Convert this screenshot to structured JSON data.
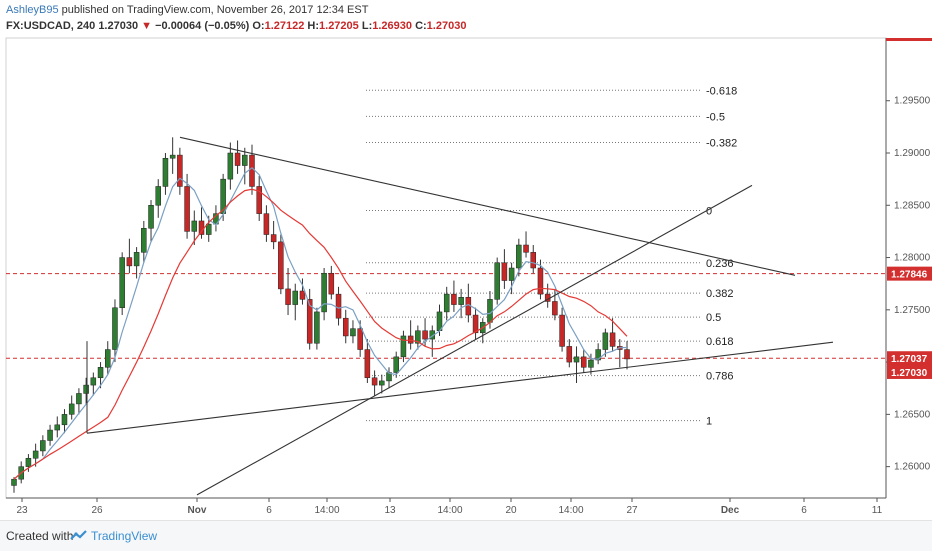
{
  "header": {
    "author": "AshleyB95",
    "published": "published on TradingView.com, November 26, 2017 12:34 EST"
  },
  "ohlc": {
    "symbol": "FX:USDCAD, 240",
    "last": "1.27030",
    "change_arrow": "▼",
    "change": "−0.00064 (−0.05%)",
    "o_label": "O:",
    "o": "1.27122",
    "h_label": "H:",
    "h": "1.27205",
    "l_label": "L:",
    "l": "1.26930",
    "c_label": "C:",
    "c": "1.27030"
  },
  "footer": {
    "created": "Created with",
    "brand": "TradingView"
  },
  "chart_data": {
    "type": "line",
    "series_type": "candlestick",
    "x_ticks": [
      "23",
      "26",
      "Nov",
      "6",
      "14:00",
      "13",
      "14:00",
      "20",
      "14:00",
      "27",
      "Dec",
      "6",
      "11"
    ],
    "y_ticks": [
      "1.29500",
      "1.29000",
      "1.28500",
      "1.28000",
      "1.27500",
      "1.27000",
      "1.26500",
      "1.26000"
    ],
    "ylim": [
      1.257,
      1.301
    ],
    "price_labels": [
      {
        "value": 1.27846,
        "text": "1.27846",
        "color": "#d32f2f"
      },
      {
        "value": 1.27037,
        "text": "1.27037",
        "color": "#d32f2f"
      },
      {
        "value": 1.2703,
        "text": "1.27030",
        "color": "#d32f2f"
      }
    ],
    "horizontal_dashed_lines": [
      1.27846,
      1.27037
    ],
    "fibonacci": [
      {
        "level": "-0.618",
        "price": 1.296
      },
      {
        "level": "-0.5",
        "price": 1.2935
      },
      {
        "level": "-0.382",
        "price": 1.291
      },
      {
        "level": "0",
        "price": 1.2845
      },
      {
        "level": "0.236",
        "price": 1.2795
      },
      {
        "level": "0.382",
        "price": 1.2766
      },
      {
        "level": "0.5",
        "price": 1.2743
      },
      {
        "level": "0.618",
        "price": 1.272
      },
      {
        "level": "0.786",
        "price": 1.2687
      },
      {
        "level": "1",
        "price": 1.2644
      }
    ],
    "trendlines": [
      {
        "name": "upper",
        "from": {
          "x": "Oct 31",
          "y": 1.2915
        },
        "to": {
          "x": "Dec 3",
          "y": 1.2783
        }
      },
      {
        "name": "lower",
        "from": {
          "x": "Oct 25",
          "y": 1.2632
        },
        "to": {
          "x": "Dec 7",
          "y": 1.2719
        }
      },
      {
        "name": "rising",
        "from": {
          "x": "Nov 1",
          "y": 1.2573
        },
        "to": {
          "x": "Dec 5",
          "y": 1.2869
        }
      }
    ],
    "candles": [
      [
        1.2582,
        1.259,
        1.2575,
        1.2588
      ],
      [
        1.2588,
        1.2605,
        1.2584,
        1.26
      ],
      [
        1.26,
        1.2612,
        1.2595,
        1.2608
      ],
      [
        1.2608,
        1.2622,
        1.26,
        1.2615
      ],
      [
        1.2615,
        1.263,
        1.261,
        1.2625
      ],
      [
        1.2625,
        1.264,
        1.262,
        1.2635
      ],
      [
        1.2635,
        1.2648,
        1.2628,
        1.264
      ],
      [
        1.264,
        1.2655,
        1.2632,
        1.265
      ],
      [
        1.265,
        1.2668,
        1.2645,
        1.266
      ],
      [
        1.266,
        1.2675,
        1.265,
        1.267
      ],
      [
        1.267,
        1.2685,
        1.266,
        1.2678
      ],
      [
        1.2678,
        1.269,
        1.2668,
        1.2685
      ],
      [
        1.2685,
        1.27,
        1.2675,
        1.2695
      ],
      [
        1.2695,
        1.272,
        1.2688,
        1.2712
      ],
      [
        1.2712,
        1.276,
        1.27,
        1.2752
      ],
      [
        1.2752,
        1.2805,
        1.2745,
        1.28
      ],
      [
        1.28,
        1.2818,
        1.2785,
        1.2792
      ],
      [
        1.2792,
        1.281,
        1.278,
        1.2805
      ],
      [
        1.2805,
        1.2835,
        1.2795,
        1.2828
      ],
      [
        1.2828,
        1.2855,
        1.2815,
        1.285
      ],
      [
        1.285,
        1.2875,
        1.2838,
        1.2868
      ],
      [
        1.2868,
        1.29,
        1.286,
        1.2895
      ],
      [
        1.2895,
        1.2915,
        1.288,
        1.2898
      ],
      [
        1.2898,
        1.2905,
        1.286,
        1.2868
      ],
      [
        1.2868,
        1.288,
        1.2818,
        1.2825
      ],
      [
        1.2825,
        1.2845,
        1.2812,
        1.2835
      ],
      [
        1.2835,
        1.2848,
        1.2818,
        1.2822
      ],
      [
        1.2822,
        1.284,
        1.2815,
        1.2832
      ],
      [
        1.2832,
        1.285,
        1.2825,
        1.2842
      ],
      [
        1.2842,
        1.288,
        1.2835,
        1.2875
      ],
      [
        1.2875,
        1.291,
        1.2865,
        1.29
      ],
      [
        1.29,
        1.2912,
        1.288,
        1.2888
      ],
      [
        1.2888,
        1.2905,
        1.287,
        1.2898
      ],
      [
        1.2898,
        1.2908,
        1.286,
        1.2868
      ],
      [
        1.2868,
        1.2878,
        1.2835,
        1.2842
      ],
      [
        1.2842,
        1.285,
        1.2815,
        1.2822
      ],
      [
        1.2822,
        1.2835,
        1.2808,
        1.2815
      ],
      [
        1.2815,
        1.2822,
        1.2765,
        1.277
      ],
      [
        1.277,
        1.279,
        1.2745,
        1.2755
      ],
      [
        1.2755,
        1.2775,
        1.274,
        1.2768
      ],
      [
        1.2768,
        1.278,
        1.2755,
        1.276
      ],
      [
        1.276,
        1.277,
        1.2712,
        1.2718
      ],
      [
        1.2718,
        1.2752,
        1.2712,
        1.2748
      ],
      [
        1.2748,
        1.279,
        1.274,
        1.2785
      ],
      [
        1.2785,
        1.2792,
        1.276,
        1.2765
      ],
      [
        1.2765,
        1.2772,
        1.2735,
        1.2742
      ],
      [
        1.2742,
        1.275,
        1.2718,
        1.2725
      ],
      [
        1.2725,
        1.274,
        1.2718,
        1.2732
      ],
      [
        1.2732,
        1.274,
        1.2705,
        1.2712
      ],
      [
        1.2712,
        1.2722,
        1.268,
        1.2685
      ],
      [
        1.2685,
        1.2692,
        1.2668,
        1.2678
      ],
      [
        1.2678,
        1.2688,
        1.267,
        1.2682
      ],
      [
        1.2682,
        1.2695,
        1.2675,
        1.269
      ],
      [
        1.269,
        1.271,
        1.2685,
        1.2705
      ],
      [
        1.2705,
        1.273,
        1.27,
        1.2725
      ],
      [
        1.2725,
        1.274,
        1.2712,
        1.2718
      ],
      [
        1.2718,
        1.2735,
        1.2712,
        1.273
      ],
      [
        1.273,
        1.2742,
        1.2715,
        1.2722
      ],
      [
        1.2722,
        1.2735,
        1.2705,
        1.273
      ],
      [
        1.273,
        1.2755,
        1.2725,
        1.2748
      ],
      [
        1.2748,
        1.2772,
        1.274,
        1.2765
      ],
      [
        1.2765,
        1.2778,
        1.2748,
        1.2755
      ],
      [
        1.2755,
        1.277,
        1.2742,
        1.2762
      ],
      [
        1.2762,
        1.2775,
        1.2738,
        1.2745
      ],
      [
        1.2745,
        1.2752,
        1.2722,
        1.2728
      ],
      [
        1.2728,
        1.2742,
        1.2718,
        1.2738
      ],
      [
        1.2738,
        1.2768,
        1.2732,
        1.276
      ],
      [
        1.276,
        1.28,
        1.2755,
        1.2795
      ],
      [
        1.2795,
        1.2808,
        1.277,
        1.2778
      ],
      [
        1.2778,
        1.2795,
        1.2765,
        1.279
      ],
      [
        1.279,
        1.2818,
        1.2782,
        1.2812
      ],
      [
        1.2812,
        1.2825,
        1.28,
        1.2805
      ],
      [
        1.2805,
        1.2812,
        1.2785,
        1.279
      ],
      [
        1.279,
        1.2798,
        1.276,
        1.2765
      ],
      [
        1.2765,
        1.2775,
        1.2752,
        1.2758
      ],
      [
        1.2758,
        1.277,
        1.274,
        1.2745
      ],
      [
        1.2745,
        1.2752,
        1.271,
        1.2715
      ],
      [
        1.2715,
        1.2722,
        1.2695,
        1.27
      ],
      [
        1.27,
        1.2715,
        1.268,
        1.2705
      ],
      [
        1.2705,
        1.2712,
        1.269,
        1.2695
      ],
      [
        1.2695,
        1.2708,
        1.2688,
        1.2702
      ],
      [
        1.2702,
        1.2718,
        1.2698,
        1.2712
      ],
      [
        1.2712,
        1.2732,
        1.2705,
        1.2728
      ],
      [
        1.2728,
        1.2742,
        1.271,
        1.2715
      ],
      [
        1.2715,
        1.2722,
        1.2695,
        1.2712
      ],
      [
        1.2712,
        1.272,
        1.2693,
        1.2703
      ]
    ]
  }
}
